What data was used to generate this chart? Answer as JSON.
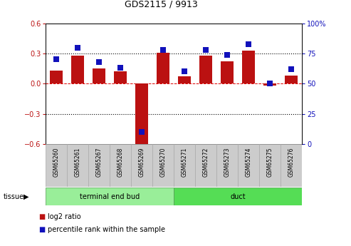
{
  "title": "GDS2115 / 9913",
  "samples": [
    "GSM65260",
    "GSM65261",
    "GSM65267",
    "GSM65268",
    "GSM65269",
    "GSM65270",
    "GSM65271",
    "GSM65272",
    "GSM65273",
    "GSM65274",
    "GSM65275",
    "GSM65276"
  ],
  "log2_ratio": [
    0.13,
    0.28,
    0.15,
    0.12,
    -0.6,
    0.31,
    0.07,
    0.28,
    0.22,
    0.33,
    -0.02,
    0.08
  ],
  "percentile_rank": [
    70,
    80,
    68,
    63,
    10,
    78,
    60,
    78,
    74,
    83,
    50,
    62
  ],
  "bar_color": "#bb1111",
  "dot_color": "#1111bb",
  "ylim_left": [
    -0.6,
    0.6
  ],
  "ylim_right": [
    0,
    100
  ],
  "yticks_left": [
    -0.6,
    -0.3,
    0.0,
    0.3,
    0.6
  ],
  "yticks_right": [
    0,
    25,
    50,
    75,
    100
  ],
  "ytick_labels_right": [
    "0",
    "25",
    "50",
    "75",
    "100%"
  ],
  "hlines_dotted": [
    0.3,
    -0.3
  ],
  "zero_line_color": "#dd0000",
  "groups": [
    {
      "label": "terminal end bud",
      "start": 0,
      "end": 6,
      "color": "#99ee99"
    },
    {
      "label": "duct",
      "start": 6,
      "end": 12,
      "color": "#55dd55"
    }
  ],
  "tissue_label": "tissue",
  "legend_items": [
    {
      "label": "log2 ratio",
      "color": "#bb1111"
    },
    {
      "label": "percentile rank within the sample",
      "color": "#1111bb"
    }
  ],
  "bar_width": 0.6,
  "dot_size": 28,
  "background_color": "#ffffff",
  "label_bg": "#cccccc",
  "label_edge": "#aaaaaa"
}
